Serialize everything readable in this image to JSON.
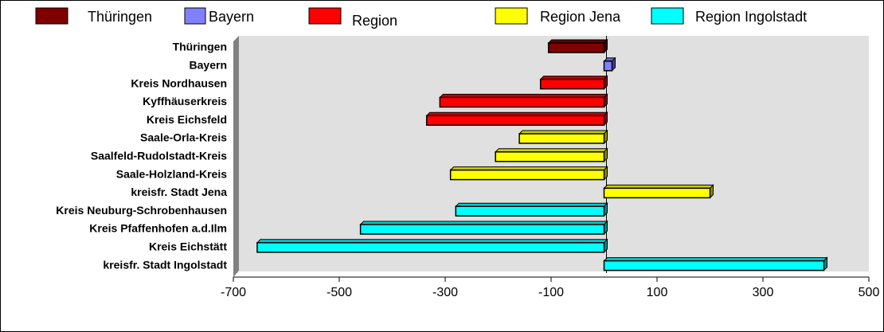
{
  "chart_data": {
    "type": "bar",
    "orientation": "horizontal",
    "categories": [
      "Thüringen",
      "Bayern",
      "Kreis Nordhausen",
      "Kyffhäuserkreis",
      "Kreis Eichsfeld",
      "Saale-Orla-Kreis",
      "Saalfeld-Rudolstadt-Kreis",
      "Saale-Holzland-Kreis",
      "kreisfr. Stadt Jena",
      "Kreis Neuburg-Schrobenhausen",
      "Kreis Pfaffenhofen a.d.Ilm",
      "Kreis Eichstätt",
      "kreisfr. Stadt Ingolstadt"
    ],
    "series": [
      {
        "name": "Thüringen",
        "color": "#800000",
        "values": [
          -105,
          null,
          null,
          null,
          null,
          null,
          null,
          null,
          null,
          null,
          null,
          null,
          null
        ]
      },
      {
        "name": "Bayern",
        "color": "#8080ff",
        "values": [
          null,
          15,
          null,
          null,
          null,
          null,
          null,
          null,
          null,
          null,
          null,
          null,
          null
        ]
      },
      {
        "name": "Region",
        "color": "#ff0000",
        "values": [
          null,
          null,
          -120,
          -310,
          -335,
          null,
          null,
          null,
          null,
          null,
          null,
          null,
          null
        ]
      },
      {
        "name": "Region Jena",
        "color": "#ffff00",
        "values": [
          null,
          null,
          null,
          null,
          null,
          -160,
          -205,
          -290,
          200,
          null,
          null,
          null,
          null
        ]
      },
      {
        "name": "Region Ingolstadt",
        "color": "#00ffff",
        "values": [
          null,
          null,
          null,
          null,
          null,
          null,
          null,
          null,
          null,
          -280,
          -460,
          -655,
          415
        ]
      }
    ],
    "xlim": [
      -700,
      500
    ],
    "xticks": [
      -700,
      -500,
      -300,
      -100,
      100,
      300,
      500
    ]
  }
}
